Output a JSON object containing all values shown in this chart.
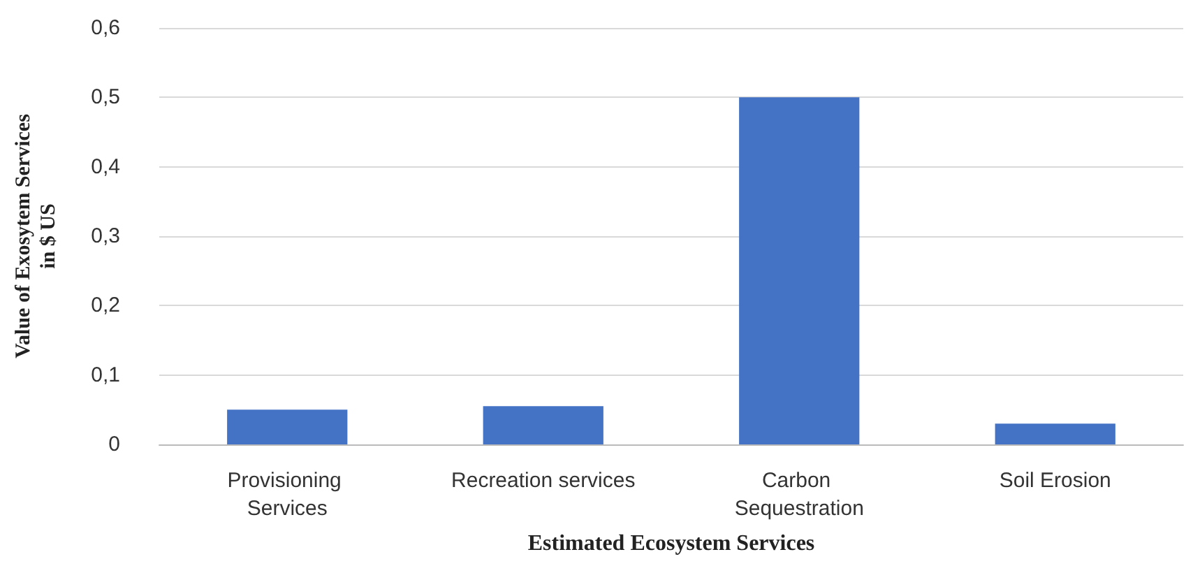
{
  "chart_data": {
    "type": "bar",
    "xlabel": "Estimated Ecosystem Services",
    "ylabel": "Value of Exosytem Services\nin $ US",
    "categories": [
      "Provisioning Services",
      "Recreation services",
      "Carbon Sequestration",
      "Soil Erosion"
    ],
    "values": [
      0.05,
      0.055,
      0.5,
      0.03
    ],
    "color": "#4472c4",
    "ylim": [
      0,
      0.6
    ],
    "yticks": [
      {
        "value": 0,
        "label": "0"
      },
      {
        "value": 0.1,
        "label": "0,1"
      },
      {
        "value": 0.2,
        "label": "0,2"
      },
      {
        "value": 0.3,
        "label": "0,3"
      },
      {
        "value": 0.4,
        "label": "0,4"
      },
      {
        "value": 0.5,
        "label": "0,5"
      },
      {
        "value": 0.6,
        "label": "0,6"
      }
    ],
    "grid": "y"
  }
}
